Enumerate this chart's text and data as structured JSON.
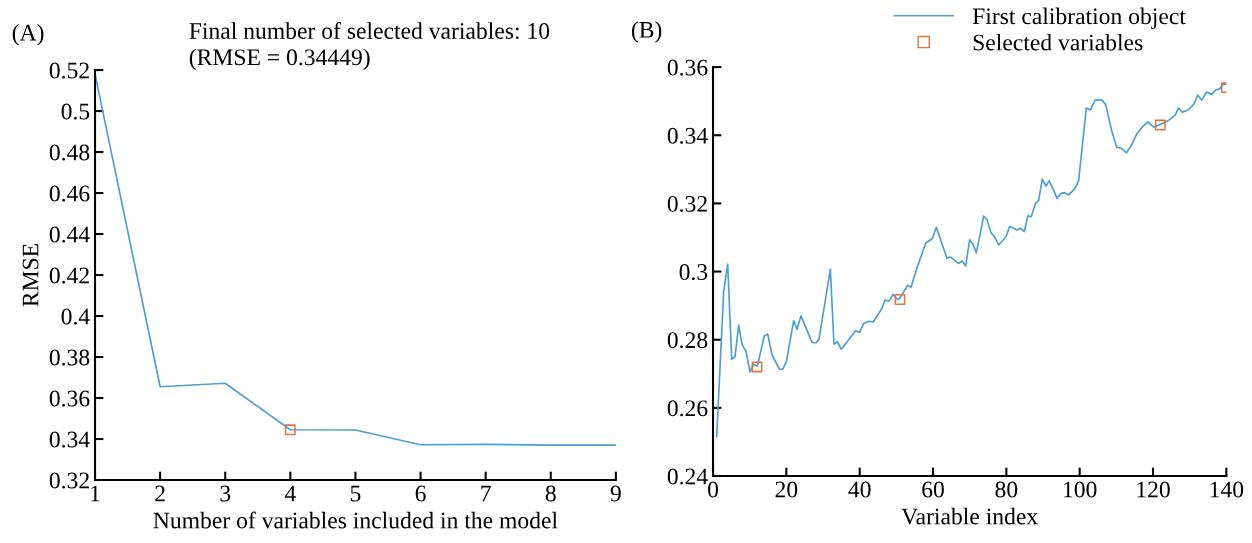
{
  "chart_data": [
    {
      "type": "line",
      "title": "Final number of selected variables: 10\n(RMSE = 0.34449)",
      "annotations": [
        "(A)"
      ],
      "xlabel": "Number of variables included in the model",
      "ylabel": "RMSE",
      "xlim": [
        1,
        9
      ],
      "xticks": [
        1,
        2,
        3,
        4,
        5,
        6,
        7,
        8,
        9
      ],
      "ylim": [
        0.32,
        0.52
      ],
      "yticks": [
        0.32,
        0.34,
        0.36,
        0.38,
        0.4,
        0.42,
        0.44,
        0.46,
        0.48,
        0.5,
        0.52
      ],
      "grid": false,
      "legend": false,
      "series": [
        {
          "color": "#4a9fd8",
          "x": [
            1,
            2,
            3,
            4,
            5,
            6,
            7,
            8,
            9
          ],
          "values": [
            0.518,
            0.3655,
            0.3672,
            0.3445,
            0.3444,
            0.3372,
            0.3374,
            0.337,
            0.337
          ]
        },
        {
          "type": "scatter",
          "marker": "square",
          "color": "#e8703a",
          "x": [
            4
          ],
          "values": [
            0.3445
          ]
        }
      ]
    },
    {
      "type": "line",
      "annotations": [
        "(B)"
      ],
      "xlabel": "Variable index",
      "xlim": [
        0,
        140
      ],
      "xticks": [
        0,
        20,
        40,
        60,
        80,
        100,
        120,
        140
      ],
      "ylim": [
        0.24,
        0.36
      ],
      "yticks": [
        0.24,
        0.26,
        0.28,
        0.3,
        0.32,
        0.34,
        0.36
      ],
      "grid": false,
      "legend": "top",
      "series": [
        {
          "name": "First calibration object",
          "color": "#4a9fd8",
          "x": [
            1,
            2.9,
            4,
            5.1,
            6,
            7,
            7.9,
            9,
            10.1,
            11,
            12.1,
            14,
            14.9,
            16.1,
            18.1,
            19,
            20,
            22,
            22.9,
            24,
            27,
            28.1,
            28.9,
            32,
            33,
            33.9,
            35,
            37.1,
            38.9,
            40,
            41.1,
            42.7,
            43.7,
            45.3,
            46,
            46.9,
            48,
            49.1,
            50.3,
            50.9,
            53.1,
            54,
            55.8,
            58,
            59.8,
            60.9,
            63.8,
            64.7,
            67,
            68,
            68.9,
            70,
            70.9,
            71.8,
            73,
            73.8,
            74.7,
            75.8,
            76.7,
            77.9,
            79.9,
            80.9,
            83,
            83.9,
            84.9,
            85.9,
            86.8,
            87.9,
            88.8,
            89.8,
            90.8,
            91.7,
            92.9,
            93.8,
            95,
            95.9,
            97,
            98.6,
            99.7,
            100.9,
            101.8,
            102.9,
            104.2,
            106.1,
            107.1,
            108.7,
            110.1,
            111.4,
            112.7,
            114.1,
            115.7,
            117.3,
            118.6,
            120.2,
            121.6,
            123.5,
            124.8,
            126.1,
            126.9,
            128,
            129.6,
            131.2,
            132.2,
            133.3,
            134.6,
            136,
            137.1,
            138.1,
            139.2,
            140
          ],
          "values": [
            0.2515,
            0.294,
            0.3022,
            0.2743,
            0.275,
            0.2843,
            0.2787,
            0.2765,
            0.2705,
            0.2728,
            0.2723,
            0.2811,
            0.2817,
            0.2755,
            0.2714,
            0.2713,
            0.2735,
            0.2856,
            0.283,
            0.287,
            0.2792,
            0.2791,
            0.2801,
            0.3007,
            0.2786,
            0.2794,
            0.2772,
            0.2801,
            0.2826,
            0.2822,
            0.2848,
            0.2854,
            0.2852,
            0.2879,
            0.2891,
            0.2916,
            0.2913,
            0.2933,
            0.2918,
            0.2921,
            0.296,
            0.2954,
            0.3016,
            0.3083,
            0.3097,
            0.313,
            0.3039,
            0.3043,
            0.3024,
            0.3031,
            0.3016,
            0.3093,
            0.3081,
            0.3055,
            0.3117,
            0.3163,
            0.3153,
            0.3114,
            0.3104,
            0.3078,
            0.3102,
            0.3132,
            0.3122,
            0.3127,
            0.3117,
            0.3164,
            0.3161,
            0.32,
            0.3208,
            0.3271,
            0.3251,
            0.3266,
            0.3239,
            0.3215,
            0.323,
            0.3231,
            0.3225,
            0.3242,
            0.3266,
            0.3386,
            0.348,
            0.3474,
            0.3503,
            0.3503,
            0.349,
            0.3415,
            0.3365,
            0.3362,
            0.3348,
            0.337,
            0.3406,
            0.3427,
            0.3439,
            0.3424,
            0.343,
            0.3439,
            0.3448,
            0.346,
            0.348,
            0.3468,
            0.3474,
            0.3492,
            0.3518,
            0.3503,
            0.3527,
            0.352,
            0.3533,
            0.3536,
            0.355,
            0.355
          ]
        },
        {
          "type": "scatter",
          "marker": "square",
          "name": "Selected variables",
          "color": "#e8703a",
          "x": [
            12,
            51,
            122,
            140
          ],
          "values": [
            0.272,
            0.2918,
            0.343,
            0.354
          ]
        }
      ]
    }
  ]
}
